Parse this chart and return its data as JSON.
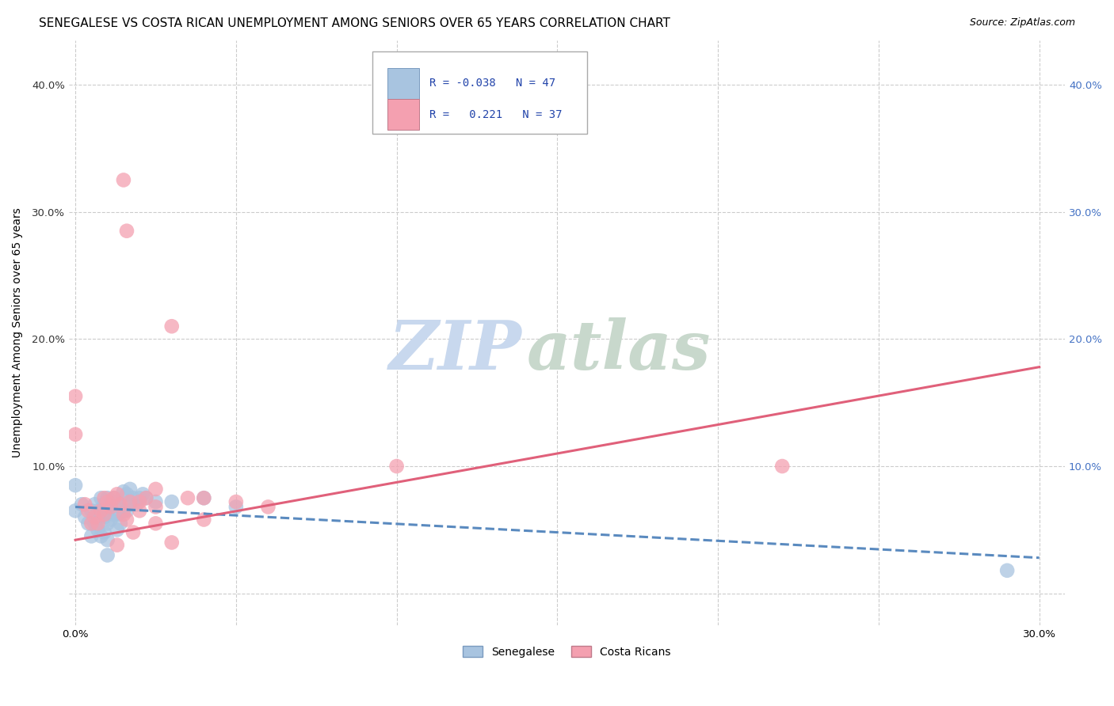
{
  "title": "SENEGALESE VS COSTA RICAN UNEMPLOYMENT AMONG SENIORS OVER 65 YEARS CORRELATION CHART",
  "source": "Source: ZipAtlas.com",
  "ylabel": "Unemployment Among Seniors over 65 years",
  "xlim": [
    -0.002,
    0.308
  ],
  "ylim": [
    -0.025,
    0.435
  ],
  "x_tick_positions": [
    0.0,
    0.05,
    0.1,
    0.15,
    0.2,
    0.25,
    0.3
  ],
  "x_tick_labels": [
    "0.0%",
    "",
    "",
    "",
    "",
    "",
    "30.0%"
  ],
  "y_tick_positions": [
    0.0,
    0.1,
    0.2,
    0.3,
    0.4
  ],
  "left_y_tick_labels": [
    "",
    "10.0%",
    "20.0%",
    "30.0%",
    "40.0%"
  ],
  "right_y_tick_labels": [
    "",
    "10.0%",
    "20.0%",
    "30.0%",
    "40.0%"
  ],
  "senegalese_color": "#a8c4e0",
  "costa_rican_color": "#f4a0b0",
  "senegalese_line_color": "#5a8abf",
  "costa_rican_line_color": "#e0607a",
  "tick_color_left": "#333333",
  "tick_color_right": "#4472c4",
  "legend_label_1": "Senegalese",
  "legend_label_2": "Costa Ricans",
  "watermark_zip": "ZIP",
  "watermark_atlas": "atlas",
  "watermark_color_zip": "#c8d8ee",
  "watermark_color_atlas": "#c8d8cc",
  "senegalese_x": [
    0.0,
    0.0,
    0.002,
    0.003,
    0.004,
    0.005,
    0.005,
    0.006,
    0.006,
    0.007,
    0.007,
    0.008,
    0.008,
    0.008,
    0.009,
    0.009,
    0.009,
    0.01,
    0.01,
    0.01,
    0.01,
    0.01,
    0.011,
    0.011,
    0.012,
    0.012,
    0.013,
    0.013,
    0.013,
    0.014,
    0.014,
    0.015,
    0.015,
    0.016,
    0.016,
    0.017,
    0.017,
    0.018,
    0.019,
    0.02,
    0.021,
    0.022,
    0.025,
    0.03,
    0.04,
    0.05,
    0.29
  ],
  "senegalese_y": [
    0.085,
    0.065,
    0.07,
    0.06,
    0.055,
    0.065,
    0.045,
    0.07,
    0.055,
    0.065,
    0.05,
    0.075,
    0.06,
    0.045,
    0.07,
    0.06,
    0.048,
    0.075,
    0.065,
    0.055,
    0.042,
    0.03,
    0.07,
    0.058,
    0.075,
    0.062,
    0.072,
    0.062,
    0.05,
    0.068,
    0.055,
    0.08,
    0.065,
    0.078,
    0.065,
    0.082,
    0.07,
    0.075,
    0.07,
    0.075,
    0.078,
    0.075,
    0.072,
    0.072,
    0.075,
    0.068,
    0.018
  ],
  "costa_rican_x": [
    0.0,
    0.0,
    0.003,
    0.004,
    0.005,
    0.006,
    0.007,
    0.008,
    0.009,
    0.009,
    0.01,
    0.011,
    0.012,
    0.013,
    0.014,
    0.015,
    0.016,
    0.017,
    0.02,
    0.022,
    0.025,
    0.025,
    0.03,
    0.035,
    0.04,
    0.04,
    0.05,
    0.06,
    0.1,
    0.22,
    0.013,
    0.015,
    0.016,
    0.018,
    0.02,
    0.025,
    0.03
  ],
  "costa_rican_y": [
    0.155,
    0.125,
    0.07,
    0.065,
    0.055,
    0.06,
    0.055,
    0.065,
    0.075,
    0.062,
    0.072,
    0.068,
    0.075,
    0.078,
    0.07,
    0.325,
    0.285,
    0.072,
    0.072,
    0.075,
    0.082,
    0.068,
    0.21,
    0.075,
    0.075,
    0.058,
    0.072,
    0.068,
    0.1,
    0.1,
    0.038,
    0.062,
    0.058,
    0.048,
    0.065,
    0.055,
    0.04
  ],
  "blue_line": {
    "x0": 0.0,
    "x1": 0.3,
    "y0": 0.068,
    "y1": 0.028
  },
  "pink_line": {
    "x0": 0.0,
    "x1": 0.3,
    "y0": 0.042,
    "y1": 0.178
  },
  "background_color": "#ffffff",
  "grid_color": "#cccccc",
  "title_fontsize": 11,
  "axis_label_fontsize": 10,
  "tick_fontsize": 9.5,
  "legend_fontsize": 10,
  "source_fontsize": 9
}
